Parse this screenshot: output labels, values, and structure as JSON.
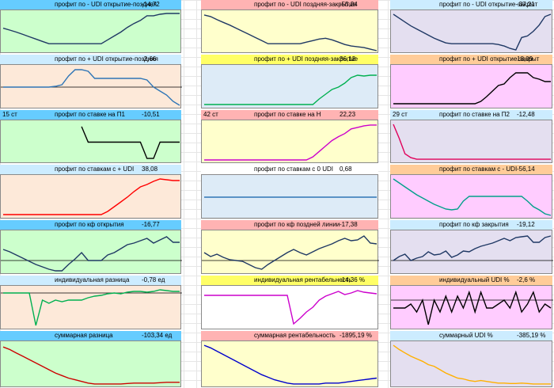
{
  "colors": {
    "green": "#ccffcc",
    "yellow": "#ffffcc",
    "lavender": "#e4dff0",
    "peach": "#fde9d9",
    "lightblue": "#ddebf7",
    "pink": "#ffccff",
    "hdr_blue": "#66ccff",
    "hdr_pink": "#ffb3b3",
    "hdr_lightblue": "#ccecff",
    "hdr_yellow": "#ffff66",
    "hdr_orange": "#ffcc99",
    "hdr_white": "#ffffff"
  },
  "panels": [
    {
      "id": "p1",
      "title": "профит по - UDI открытие-поздняя",
      "value": "-14,72",
      "tag": "",
      "header_color": "#66ccff",
      "bg": "#ccffcc",
      "line_color": "#1f3864",
      "ref": false,
      "series": [
        0.6,
        0.55,
        0.5,
        0.44,
        0.38,
        0.32,
        0.26,
        0.2,
        0.2,
        0.2,
        0.2,
        0.2,
        0.2,
        0.2,
        0.2,
        0.2,
        0.3,
        0.4,
        0.5,
        0.62,
        0.72,
        0.8,
        0.92,
        0.92,
        0.96,
        0.98,
        0.98,
        0.98
      ]
    },
    {
      "id": "p2",
      "title": "профит по - UDI поздняя-закрытие",
      "value": "-55,24",
      "tag": "",
      "header_color": "#ffb3b3",
      "bg": "#ffffcc",
      "line_color": "#1f3864",
      "ref": false,
      "series": [
        0.94,
        0.9,
        0.82,
        0.75,
        0.68,
        0.6,
        0.52,
        0.44,
        0.36,
        0.28,
        0.2,
        0.2,
        0.2,
        0.2,
        0.2,
        0.2,
        0.24,
        0.28,
        0.32,
        0.34,
        0.3,
        0.24,
        0.18,
        0.14,
        0.12,
        0.1,
        0.06,
        0.02
      ]
    },
    {
      "id": "p3",
      "title": "профит по - UDI открытие-закрыт",
      "value": "-37,21",
      "tag": "",
      "header_color": "#ccecff",
      "bg": "#e4dff0",
      "line_color": "#1f3864",
      "ref": false,
      "series": [
        0.96,
        0.86,
        0.76,
        0.66,
        0.58,
        0.5,
        0.42,
        0.34,
        0.28,
        0.22,
        0.2,
        0.2,
        0.2,
        0.2,
        0.2,
        0.2,
        0.2,
        0.2,
        0.18,
        0.14,
        0.08,
        0.04,
        0.36,
        0.4,
        0.52,
        0.68,
        0.9,
        0.96
      ]
    },
    {
      "id": "p4",
      "title": "профит по + UDI открытие-поздняя",
      "value": "-2,66",
      "tag": "",
      "header_color": "#ccecff",
      "bg": "#fde9d9",
      "line_color": "#2e75b6",
      "ref": true,
      "ref_level": 0.5,
      "series": [
        0.5,
        0.5,
        0.5,
        0.5,
        0.5,
        0.5,
        0.5,
        0.5,
        0.52,
        0.56,
        0.78,
        0.94,
        0.94,
        0.9,
        0.72,
        0.72,
        0.72,
        0.72,
        0.72,
        0.72,
        0.72,
        0.72,
        0.68,
        0.5,
        0.4,
        0.3,
        0.14,
        0.04
      ]
    },
    {
      "id": "p5",
      "title": "профит по + UDI поздняя-закрытие",
      "value": "36,12",
      "tag": "",
      "header_color": "#ffff66",
      "bg": "#ddebf7",
      "line_color": "#00b050",
      "ref": false,
      "series": [
        0.06,
        0.06,
        0.06,
        0.06,
        0.06,
        0.06,
        0.06,
        0.06,
        0.06,
        0.06,
        0.06,
        0.06,
        0.06,
        0.06,
        0.06,
        0.06,
        0.06,
        0.06,
        0.2,
        0.32,
        0.44,
        0.5,
        0.6,
        0.74,
        0.8,
        0.78,
        0.8,
        0.8
      ]
    },
    {
      "id": "p6",
      "title": "профит по + UDI открытие-закрыт",
      "value": "18,09",
      "tag": "",
      "header_color": "#ffcc99",
      "bg": "#ffccff",
      "line_color": "#000000",
      "ref": false,
      "series": [
        0.08,
        0.08,
        0.08,
        0.08,
        0.08,
        0.08,
        0.08,
        0.08,
        0.08,
        0.08,
        0.08,
        0.08,
        0.08,
        0.08,
        0.08,
        0.14,
        0.26,
        0.4,
        0.54,
        0.58,
        0.74,
        0.86,
        0.86,
        0.86,
        0.74,
        0.7,
        0.64,
        0.64
      ]
    },
    {
      "id": "p7",
      "title": "профит по ставке на П1",
      "value": "-10,51",
      "tag": "15 ст",
      "header_color": "#66ccff",
      "bg": "#ccffcc",
      "line_color": "#000000",
      "ref": false,
      "series": [
        null,
        null,
        null,
        null,
        null,
        null,
        null,
        null,
        null,
        null,
        null,
        null,
        0.9,
        0.5,
        0.5,
        0.5,
        0.5,
        0.5,
        0.5,
        0.5,
        0.5,
        0.5,
        0.08,
        0.08,
        0.5,
        0.5,
        0.5,
        0.5
      ]
    },
    {
      "id": "p8",
      "title": "профит по ставке на Н",
      "value": "22,23",
      "tag": "42 ст",
      "header_color": "#ffb3b3",
      "bg": "#ffffcc",
      "line_color": "#cc00cc",
      "ref": false,
      "series": [
        0.04,
        0.04,
        0.04,
        0.04,
        0.04,
        0.04,
        0.04,
        0.04,
        0.04,
        0.04,
        0.04,
        0.04,
        0.04,
        0.04,
        0.04,
        0.04,
        0.04,
        0.12,
        0.26,
        0.4,
        0.54,
        0.64,
        0.72,
        0.84,
        0.88,
        0.92,
        0.94,
        0.94
      ]
    },
    {
      "id": "p9",
      "title": "профит по ставке на П2",
      "value": "-12,48",
      "tag": "29 ст",
      "header_color": "#ccecff",
      "bg": "#e4dff0",
      "line_color": "#e0005a",
      "ref": false,
      "series": [
        0.96,
        0.6,
        0.2,
        0.1,
        0.06,
        0.06,
        0.06,
        0.06,
        0.06,
        0.06,
        0.06,
        0.06,
        0.06,
        0.06,
        0.06,
        0.06,
        0.06,
        0.06,
        0.06,
        0.06,
        0.06,
        0.06,
        0.06,
        0.06,
        0.06,
        0.06,
        0.06,
        0.06
      ]
    },
    {
      "id": "p10",
      "title": "профит по ставкам с + UDI",
      "value": "38,08",
      "tag": "",
      "header_color": "#ccecff",
      "bg": "#fde9d9",
      "line_color": "#ff0000",
      "ref": false,
      "series": [
        0.06,
        0.06,
        0.06,
        0.06,
        0.06,
        0.06,
        0.06,
        0.06,
        0.06,
        0.06,
        0.06,
        0.06,
        0.06,
        0.06,
        0.06,
        0.06,
        0.14,
        0.26,
        0.38,
        0.5,
        0.64,
        0.76,
        0.82,
        0.9,
        0.96,
        0.94,
        0.92,
        0.92
      ]
    },
    {
      "id": "p11",
      "title": "профит по ставкам с 0 UDI",
      "value": "0,68",
      "tag": "",
      "header_color": "#ffffff",
      "bg": "#ddebf7",
      "line_color": "#2e75b6",
      "ref": false,
      "series": [
        0.5,
        0.5,
        0.5,
        0.5,
        0.5,
        0.5,
        0.5,
        0.5,
        0.5,
        0.5,
        0.5,
        0.5,
        0.5,
        0.5,
        0.5,
        0.5,
        0.5,
        0.5,
        0.5,
        0.5,
        0.5,
        0.5,
        0.5,
        0.5,
        0.5,
        0.5,
        0.5,
        0.5
      ]
    },
    {
      "id": "p12",
      "title": "профит по ставкам с - UDI",
      "value": "-56,14",
      "tag": "",
      "header_color": "#ffcc99",
      "bg": "#ffccff",
      "line_color": "#00a08a",
      "ref": false,
      "series": [
        0.96,
        0.86,
        0.76,
        0.66,
        0.56,
        0.48,
        0.4,
        0.32,
        0.26,
        0.2,
        0.18,
        0.2,
        0.4,
        0.52,
        0.52,
        0.52,
        0.52,
        0.52,
        0.52,
        0.52,
        0.52,
        0.52,
        0.52,
        0.4,
        0.26,
        0.18,
        0.08,
        0.04
      ]
    },
    {
      "id": "p13",
      "title": "профит по кф открытия",
      "value": "-16,77",
      "tag": "",
      "header_color": "#66ccff",
      "bg": "#ccffcc",
      "line_color": "#1f3864",
      "ref": true,
      "ref_level": 0.3,
      "series": [
        0.58,
        0.52,
        0.44,
        0.36,
        0.28,
        0.2,
        0.14,
        0.08,
        0.04,
        0.04,
        0.2,
        0.34,
        0.5,
        0.3,
        0.3,
        0.3,
        0.44,
        0.5,
        0.6,
        0.7,
        0.74,
        0.8,
        0.86,
        0.74,
        0.82,
        0.9,
        0.76,
        0.76
      ]
    },
    {
      "id": "p14",
      "title": "профит по кф поздней линии",
      "value": "-17,38",
      "tag": "",
      "header_color": "#ffb3b3",
      "bg": "#ffffcc",
      "line_color": "#1f3864",
      "ref": true,
      "ref_level": 0.3,
      "series": [
        0.5,
        0.4,
        0.46,
        0.38,
        0.32,
        0.3,
        0.28,
        0.2,
        0.12,
        0.08,
        0.2,
        0.3,
        0.4,
        0.5,
        0.58,
        0.5,
        0.44,
        0.52,
        0.6,
        0.66,
        0.72,
        0.8,
        0.86,
        0.8,
        0.82,
        0.92,
        0.74,
        0.72
      ]
    },
    {
      "id": "p15",
      "title": "профит по кф закрытия",
      "value": "-19,12",
      "tag": "",
      "header_color": "#ccecff",
      "bg": "#e4dff0",
      "line_color": "#1f3864",
      "ref": true,
      "ref_level": 0.3,
      "series": [
        0.3,
        0.4,
        0.46,
        0.3,
        0.36,
        0.4,
        0.52,
        0.44,
        0.46,
        0.54,
        0.38,
        0.44,
        0.54,
        0.52,
        0.6,
        0.66,
        0.7,
        0.74,
        0.8,
        0.86,
        0.8,
        0.88,
        0.9,
        0.92,
        0.76,
        0.76,
        0.88,
        0.92
      ]
    },
    {
      "id": "p16",
      "title": "индивидуальная разница",
      "value": "-0,78 ед",
      "tag": "",
      "header_color": "#ccecff",
      "bg": "#fde9d9",
      "line_color": "#00b050",
      "ref": true,
      "ref_level": 0.88,
      "series": [
        0.88,
        0.88,
        0.88,
        0.88,
        0.88,
        0.06,
        0.7,
        0.62,
        0.7,
        0.66,
        0.7,
        0.7,
        0.7,
        0.76,
        0.8,
        0.82,
        0.86,
        0.88,
        0.86,
        0.9,
        0.92,
        0.92,
        0.9,
        0.92,
        0.96,
        0.94,
        0.92,
        0.92
      ]
    },
    {
      "id": "p17",
      "title": "индивидуальная рентабельность",
      "value": "-14,36 %",
      "tag": "",
      "header_color": "#ffff66",
      "bg": "#ffffff",
      "line_color": "#cc00cc",
      "ref": false,
      "series": [
        0.8,
        0.8,
        0.8,
        0.8,
        0.8,
        0.8,
        0.8,
        0.8,
        0.8,
        0.8,
        0.8,
        0.8,
        0.8,
        0.8,
        0.8,
        0.8,
        0.8,
        0.8,
        0.8,
        0.8,
        0.8,
        0.8,
        0.8,
        0.8,
        0.8,
        0.8,
        0.8,
        0.8
      ],
      "series_detail": [
        0.82,
        0.82,
        0.82,
        0.82,
        0.82,
        0.82,
        0.82,
        0.82,
        0.82,
        0.82,
        0.82,
        0.82,
        0.82,
        0.82,
        0.1,
        0.24,
        0.4,
        0.52,
        0.7,
        0.8,
        0.86,
        0.92,
        0.84,
        0.88,
        0.94,
        0.9,
        0.88,
        0.86
      ]
    },
    {
      "id": "p18",
      "title": "индивидуальный UDI %",
      "value": "-2,6 %",
      "tag": "",
      "header_color": "#ffcc99",
      "bg": "#ffccff",
      "line_color": "#000000",
      "ref": true,
      "ref_level": 0.7,
      "series": [
        0.5,
        0.5,
        0.5,
        0.6,
        0.4,
        0.7,
        0.08,
        0.7,
        0.4,
        0.8,
        0.4,
        0.8,
        0.5,
        0.9,
        0.4,
        0.9,
        0.5,
        0.5,
        0.6,
        0.7,
        0.5,
        0.9,
        0.4,
        0.6,
        0.9,
        0.4,
        0.6,
        0.5
      ]
    },
    {
      "id": "p19",
      "title": "суммарная разница",
      "value": "-103,34 ед",
      "tag": "",
      "header_color": "#66ccff",
      "bg": "#ccffcc",
      "line_color": "#cc0000",
      "ref": false,
      "series": [
        0.92,
        0.86,
        0.78,
        0.7,
        0.62,
        0.54,
        0.46,
        0.38,
        0.3,
        0.24,
        0.18,
        0.14,
        0.1,
        0.06,
        0.04,
        0.04,
        0.04,
        0.04,
        0.04,
        0.05,
        0.06,
        0.06,
        0.06,
        0.06,
        0.07,
        0.08,
        0.08,
        0.08
      ]
    },
    {
      "id": "p20",
      "title": "суммарная рентабельность",
      "value": "-1895,19 %",
      "tag": "",
      "header_color": "#ffb3b3",
      "bg": "#ffffcc",
      "line_color": "#0000cc",
      "ref": false,
      "series": [
        0.96,
        0.9,
        0.82,
        0.74,
        0.66,
        0.58,
        0.5,
        0.42,
        0.34,
        0.26,
        0.2,
        0.14,
        0.1,
        0.06,
        0.04,
        0.04,
        0.04,
        0.04,
        0.04,
        0.06,
        0.06,
        0.06,
        0.08,
        0.1,
        0.12,
        0.14,
        0.16,
        0.18
      ]
    },
    {
      "id": "p21",
      "title": "суммарный UDI %",
      "value": "-385,19 %",
      "tag": "",
      "header_color": "#ccecff",
      "bg": "#e4dff0",
      "line_color": "#ffb000",
      "ref": false,
      "series": [
        0.96,
        0.86,
        0.78,
        0.7,
        0.64,
        0.58,
        0.5,
        0.46,
        0.38,
        0.3,
        0.24,
        0.18,
        0.16,
        0.12,
        0.1,
        0.12,
        0.1,
        0.08,
        0.06,
        0.06,
        0.05,
        0.05,
        0.06,
        0.05,
        0.04,
        0.04,
        0.04,
        0.04
      ]
    }
  ]
}
